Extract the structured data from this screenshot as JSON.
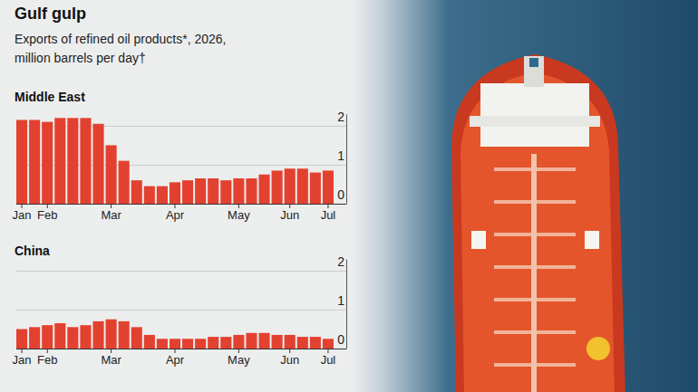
{
  "title": "Gulf gulp",
  "subtitle": "Exports of refined oil products*, 2026, million barrels per day†",
  "chart_data": [
    {
      "type": "bar",
      "title": "Middle East",
      "categories": [
        "Jan",
        null,
        "Feb",
        null,
        null,
        null,
        null,
        "Mar",
        null,
        null,
        null,
        null,
        "Apr",
        null,
        null,
        null,
        null,
        "May",
        null,
        null,
        null,
        "Jun",
        null,
        null,
        "Jul"
      ],
      "values": [
        2.15,
        2.15,
        2.1,
        2.2,
        2.2,
        2.2,
        2.05,
        1.5,
        1.1,
        0.6,
        0.45,
        0.45,
        0.55,
        0.6,
        0.65,
        0.65,
        0.6,
        0.65,
        0.65,
        0.75,
        0.85,
        0.9,
        0.9,
        0.8,
        0.85
      ],
      "color": "#e3412f",
      "ylim": [
        0,
        2.3
      ],
      "yticks": [
        0,
        1,
        2
      ],
      "grid": true
    },
    {
      "type": "bar",
      "title": "China",
      "categories": [
        "Jan",
        null,
        "Feb",
        null,
        null,
        null,
        null,
        "Mar",
        null,
        null,
        null,
        null,
        "Apr",
        null,
        null,
        null,
        null,
        "May",
        null,
        null,
        null,
        "Jun",
        null,
        null,
        "Jul"
      ],
      "values": [
        0.5,
        0.55,
        0.6,
        0.65,
        0.55,
        0.6,
        0.7,
        0.75,
        0.7,
        0.55,
        0.35,
        0.25,
        0.25,
        0.25,
        0.25,
        0.3,
        0.3,
        0.35,
        0.4,
        0.4,
        0.35,
        0.35,
        0.3,
        0.3,
        0.25
      ],
      "color": "#e3412f",
      "ylim": [
        0,
        2.3
      ],
      "yticks": [
        0,
        1,
        2
      ],
      "grid": true
    }
  ]
}
